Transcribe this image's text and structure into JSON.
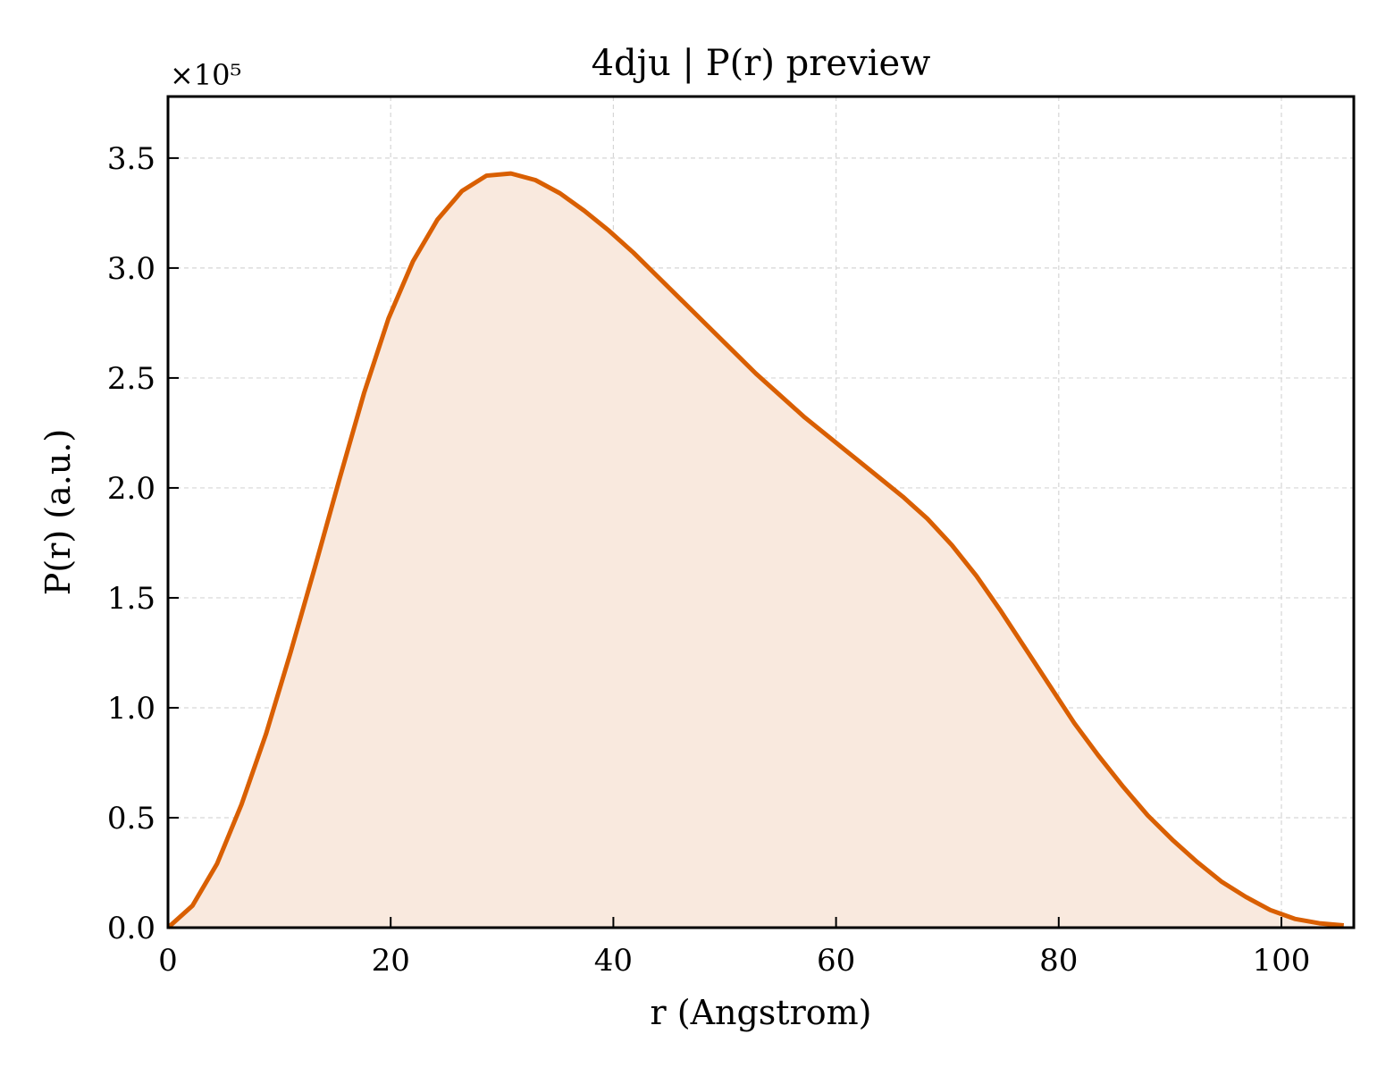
{
  "chart_data": {
    "type": "area",
    "title": "4dju | P(r) preview",
    "xlabel": "r (Angstrom)",
    "ylabel": "P(r) (a.u.)",
    "y_scale_label": "×10⁵",
    "xlim": [
      0,
      106.5
    ],
    "ylim": [
      0,
      3.78
    ],
    "x_ticks": [
      0,
      20,
      40,
      60,
      80,
      100
    ],
    "y_ticks": [
      0.0,
      0.5,
      1.0,
      1.5,
      2.0,
      2.5,
      3.0,
      3.5
    ],
    "x_tick_labels": [
      "0",
      "20",
      "40",
      "60",
      "80",
      "100"
    ],
    "y_tick_labels": [
      "0.0",
      "0.5",
      "1.0",
      "1.5",
      "2.0",
      "2.5",
      "3.0",
      "3.5"
    ],
    "grid": true,
    "colors": {
      "line": "#d95f02",
      "fill": "#f9e9de"
    },
    "series": [
      {
        "x": [
          0,
          2.2,
          4.4,
          6.6,
          8.8,
          11.0,
          13.2,
          15.4,
          17.6,
          19.8,
          22.0,
          24.2,
          26.4,
          28.6,
          30.8,
          33.0,
          35.2,
          37.4,
          39.6,
          41.8,
          44.0,
          46.2,
          48.4,
          50.6,
          52.8,
          55.0,
          57.2,
          59.4,
          61.6,
          63.8,
          66.0,
          68.2,
          70.4,
          72.6,
          74.8,
          77.0,
          79.2,
          81.4,
          83.6,
          85.8,
          88.0,
          90.2,
          92.4,
          94.6,
          96.8,
          99.0,
          101.2,
          103.4,
          105.6
        ],
        "y": [
          0.0,
          0.1,
          0.29,
          0.56,
          0.88,
          1.25,
          1.64,
          2.04,
          2.43,
          2.77,
          3.03,
          3.22,
          3.35,
          3.42,
          3.43,
          3.4,
          3.34,
          3.26,
          3.17,
          3.07,
          2.96,
          2.85,
          2.74,
          2.63,
          2.52,
          2.42,
          2.32,
          2.23,
          2.14,
          2.05,
          1.96,
          1.86,
          1.74,
          1.6,
          1.44,
          1.27,
          1.1,
          0.93,
          0.78,
          0.64,
          0.51,
          0.4,
          0.3,
          0.21,
          0.14,
          0.08,
          0.04,
          0.02,
          0.01
        ]
      }
    ]
  }
}
